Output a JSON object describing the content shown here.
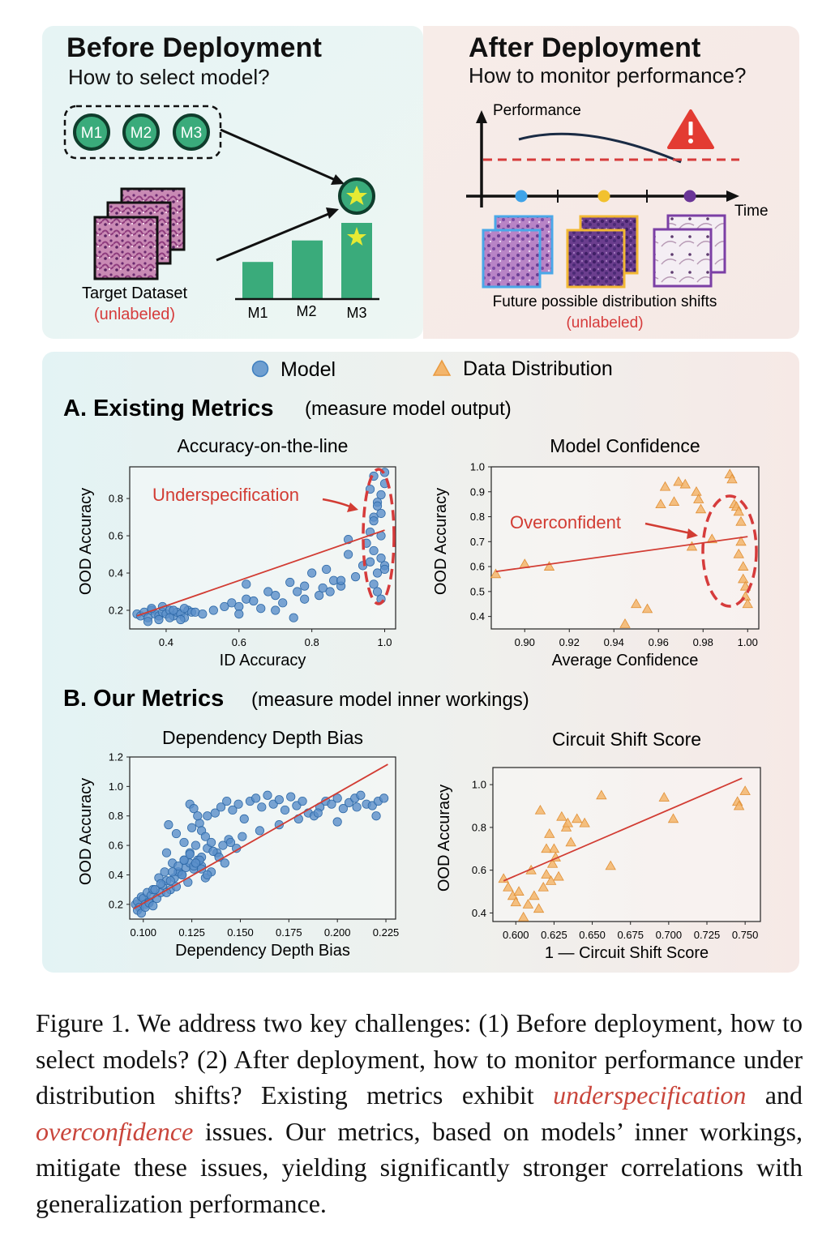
{
  "before": {
    "title": "Before Deployment",
    "subtitle": "How to select model?",
    "models": [
      "M1",
      "M2",
      "M3"
    ],
    "dataset_label": "Target Dataset",
    "unlabeled": "(unlabeled)",
    "bar_labels": [
      "M1",
      "M2",
      "M3"
    ],
    "bar_values": [
      0.38,
      0.6,
      0.78
    ]
  },
  "after": {
    "title": "After Deployment",
    "subtitle": "How to monitor performance?",
    "y_label": "Performance",
    "x_label": "Time",
    "alert_icon": "warning-icon",
    "shift_label": "Future possible distribution shifts",
    "unlabeled": "(unlabeled)"
  },
  "legend": {
    "model": "Model",
    "data": "Data Distribution"
  },
  "section_a": {
    "title": "A. Existing Metrics",
    "note": "(measure model output)"
  },
  "section_b": {
    "title": "B. Our Metrics",
    "note": "(measure model inner workings)"
  },
  "annotations": {
    "underspecification": "Underspecification",
    "overconfident": "Overconfident"
  },
  "caption": {
    "part1": "Figure 1. We address two key challenges: (1) Before deployment, how to select models? (2) After deployment, how to monitor performance under distribution shifts? Existing metrics exhibit ",
    "em1": "underspecification",
    "part2": " and ",
    "em2": "overconfidence",
    "part3": " issues. Our metrics, based on models’ inner workings, mitigate these issues, yielding significantly stronger correlations with generalization performance."
  },
  "colors": {
    "model": "#3f7fbf",
    "data": "#f0a24a",
    "fit": "#d23c33",
    "green": "#3aab7b"
  },
  "chart_data": [
    {
      "id": "acc-line",
      "type": "scatter",
      "title": "Accuracy-on-the-line",
      "xlabel": "ID Accuracy",
      "ylabel": "OOD Accuracy",
      "xlim": [
        0.3,
        1.03
      ],
      "ylim": [
        0.1,
        0.97
      ],
      "xticks": [
        0.4,
        0.6,
        0.8,
        1.0
      ],
      "yticks": [
        0.2,
        0.4,
        0.6,
        0.8
      ],
      "xtick_labels": [
        "0.4",
        "0.6",
        "0.8",
        "1.0"
      ],
      "ytick_labels": [
        "0.2",
        "0.4",
        "0.6",
        "0.8"
      ],
      "marker": "circle",
      "series": [
        {
          "name": "Model",
          "x": [
            0.32,
            0.33,
            0.34,
            0.35,
            0.36,
            0.37,
            0.38,
            0.39,
            0.4,
            0.41,
            0.42,
            0.43,
            0.44,
            0.45,
            0.46,
            0.47,
            0.35,
            0.38,
            0.41,
            0.44,
            0.36,
            0.39,
            0.42,
            0.45,
            0.48,
            0.5,
            0.53,
            0.56,
            0.58,
            0.6,
            0.62,
            0.64,
            0.66,
            0.68,
            0.7,
            0.72,
            0.74,
            0.76,
            0.78,
            0.8,
            0.82,
            0.84,
            0.86,
            0.88,
            0.9,
            0.92,
            0.94,
            0.62,
            0.7,
            0.78,
            0.85,
            0.6,
            0.75,
            0.9,
            0.83,
            0.88,
            0.95,
            0.96,
            0.97,
            0.98,
            0.99,
            1.0,
            0.96,
            0.97,
            0.98,
            0.99,
            1.0,
            0.96,
            0.97,
            0.98,
            0.99,
            1.0,
            0.97,
            0.98,
            0.99,
            1.0,
            0.97,
            0.99
          ],
          "y": [
            0.18,
            0.17,
            0.19,
            0.16,
            0.2,
            0.18,
            0.17,
            0.19,
            0.18,
            0.2,
            0.17,
            0.19,
            0.18,
            0.16,
            0.2,
            0.19,
            0.14,
            0.15,
            0.16,
            0.15,
            0.21,
            0.22,
            0.2,
            0.21,
            0.19,
            0.18,
            0.2,
            0.22,
            0.24,
            0.22,
            0.26,
            0.25,
            0.21,
            0.3,
            0.28,
            0.24,
            0.35,
            0.3,
            0.33,
            0.4,
            0.28,
            0.42,
            0.36,
            0.33,
            0.5,
            0.38,
            0.44,
            0.34,
            0.2,
            0.26,
            0.3,
            0.18,
            0.16,
            0.58,
            0.32,
            0.36,
            0.56,
            0.62,
            0.7,
            0.78,
            0.82,
            0.88,
            0.46,
            0.52,
            0.4,
            0.48,
            0.44,
            0.85,
            0.92,
            0.76,
            0.72,
            0.94,
            0.34,
            0.3,
            0.26,
            0.42,
            0.68,
            0.6
          ]
        }
      ],
      "fit": {
        "x": [
          0.32,
          1.0
        ],
        "y": [
          0.17,
          0.63
        ]
      }
    },
    {
      "id": "confidence",
      "type": "scatter",
      "title": "Model Confidence",
      "xlabel": "Average Confidence",
      "ylabel": "OOD Accuracy",
      "xlim": [
        0.885,
        1.005
      ],
      "ylim": [
        0.35,
        1.0
      ],
      "xticks": [
        0.9,
        0.92,
        0.94,
        0.96,
        0.98,
        1.0
      ],
      "yticks": [
        0.4,
        0.5,
        0.6,
        0.7,
        0.8,
        0.9,
        1.0
      ],
      "xtick_labels": [
        "0.90",
        "0.92",
        "0.94",
        "0.96",
        "0.98",
        "1.00"
      ],
      "ytick_labels": [
        "0.4",
        "0.5",
        "0.6",
        "0.7",
        "0.8",
        "0.9",
        "1.0"
      ],
      "marker": "triangle",
      "series": [
        {
          "name": "Data Distribution",
          "x": [
            0.887,
            0.9,
            0.911,
            0.945,
            0.95,
            0.955,
            0.961,
            0.963,
            0.967,
            0.969,
            0.972,
            0.975,
            0.977,
            0.978,
            0.979,
            0.984,
            0.992,
            0.993,
            0.994,
            0.995,
            0.996,
            0.997,
            0.998,
            0.998,
            0.999,
            0.999,
            1.0,
            0.996,
            0.997
          ],
          "y": [
            0.57,
            0.61,
            0.6,
            0.37,
            0.45,
            0.43,
            0.85,
            0.92,
            0.86,
            0.94,
            0.93,
            0.68,
            0.9,
            0.87,
            0.83,
            0.71,
            0.97,
            0.95,
            0.85,
            0.84,
            0.82,
            0.78,
            0.6,
            0.55,
            0.52,
            0.48,
            0.45,
            0.65,
            0.7
          ]
        }
      ],
      "fit": {
        "x": [
          0.887,
          1.0
        ],
        "y": [
          0.58,
          0.72
        ]
      }
    },
    {
      "id": "depth-bias",
      "type": "scatter",
      "title": "Dependency Depth Bias",
      "xlabel": "Dependency Depth Bias",
      "ylabel": "OOD Accuracy",
      "xlim": [
        0.093,
        0.23
      ],
      "ylim": [
        0.1,
        1.2
      ],
      "xticks": [
        0.1,
        0.125,
        0.15,
        0.175,
        0.2,
        0.225
      ],
      "yticks": [
        0.2,
        0.4,
        0.6,
        0.8,
        1.0,
        1.2
      ],
      "xtick_labels": [
        "0.100",
        "0.125",
        "0.150",
        "0.175",
        "0.200",
        "0.225"
      ],
      "ytick_labels": [
        "0.2",
        "0.4",
        "0.6",
        "0.8",
        "1.0",
        "1.2"
      ],
      "marker": "circle",
      "series": [
        {
          "name": "Model",
          "x": [
            0.096,
            0.097,
            0.098,
            0.099,
            0.1,
            0.101,
            0.102,
            0.103,
            0.104,
            0.105,
            0.097,
            0.099,
            0.101,
            0.103,
            0.105,
            0.107,
            0.109,
            0.11,
            0.112,
            0.114,
            0.116,
            0.118,
            0.12,
            0.122,
            0.124,
            0.126,
            0.128,
            0.13,
            0.112,
            0.115,
            0.118,
            0.121,
            0.124,
            0.127,
            0.13,
            0.133,
            0.113,
            0.117,
            0.121,
            0.125,
            0.129,
            0.133,
            0.137,
            0.14,
            0.143,
            0.146,
            0.149,
            0.152,
            0.155,
            0.158,
            0.161,
            0.164,
            0.167,
            0.17,
            0.173,
            0.176,
            0.179,
            0.182,
            0.185,
            0.188,
            0.191,
            0.194,
            0.197,
            0.2,
            0.203,
            0.206,
            0.209,
            0.212,
            0.215,
            0.218,
            0.221,
            0.224,
            0.124,
            0.126,
            0.128,
            0.13,
            0.132,
            0.135,
            0.108,
            0.111,
            0.114,
            0.117,
            0.12,
            0.123,
            0.126,
            0.129,
            0.132,
            0.135,
            0.138,
            0.141,
            0.144,
            0.106,
            0.109,
            0.112,
            0.115,
            0.118,
            0.121,
            0.124,
            0.127,
            0.13,
            0.133,
            0.136,
            0.139,
            0.142,
            0.145,
            0.148,
            0.151,
            0.16,
            0.17,
            0.18,
            0.19,
            0.2,
            0.21,
            0.22
          ],
          "y": [
            0.2,
            0.22,
            0.18,
            0.25,
            0.24,
            0.2,
            0.28,
            0.22,
            0.26,
            0.3,
            0.16,
            0.14,
            0.18,
            0.21,
            0.19,
            0.24,
            0.28,
            0.33,
            0.36,
            0.3,
            0.38,
            0.42,
            0.4,
            0.45,
            0.48,
            0.44,
            0.5,
            0.52,
            0.55,
            0.48,
            0.42,
            0.5,
            0.55,
            0.6,
            0.46,
            0.58,
            0.74,
            0.68,
            0.62,
            0.72,
            0.75,
            0.8,
            0.82,
            0.86,
            0.9,
            0.84,
            0.88,
            0.78,
            0.9,
            0.92,
            0.86,
            0.94,
            0.88,
            0.91,
            0.84,
            0.93,
            0.87,
            0.9,
            0.82,
            0.8,
            0.86,
            0.9,
            0.88,
            0.92,
            0.85,
            0.89,
            0.92,
            0.94,
            0.88,
            0.87,
            0.9,
            0.92,
            0.88,
            0.85,
            0.8,
            0.7,
            0.66,
            0.62,
            0.38,
            0.42,
            0.36,
            0.32,
            0.4,
            0.35,
            0.46,
            0.5,
            0.38,
            0.42,
            0.55,
            0.6,
            0.64,
            0.3,
            0.34,
            0.28,
            0.42,
            0.46,
            0.5,
            0.54,
            0.48,
            0.44,
            0.4,
            0.56,
            0.52,
            0.48,
            0.62,
            0.58,
            0.66,
            0.7,
            0.74,
            0.78,
            0.82,
            0.76,
            0.86,
            0.8
          ]
        }
      ],
      "fit": {
        "x": [
          0.095,
          0.226
        ],
        "y": [
          0.17,
          1.15
        ]
      }
    },
    {
      "id": "circuit-shift",
      "type": "scatter",
      "title": "Circuit Shift Score",
      "xlabel": "1 — Circuit Shift Score",
      "ylabel": "OOD Accuracy",
      "xlim": [
        0.585,
        0.76
      ],
      "ylim": [
        0.36,
        1.08
      ],
      "xticks": [
        0.6,
        0.625,
        0.65,
        0.675,
        0.7,
        0.725,
        0.75
      ],
      "yticks": [
        0.4,
        0.6,
        0.8,
        1.0
      ],
      "xtick_labels": [
        "0.600",
        "0.625",
        "0.650",
        "0.675",
        "0.700",
        "0.725",
        "0.750"
      ],
      "ytick_labels": [
        "0.4",
        "0.6",
        "0.8",
        "1.0"
      ],
      "marker": "triangle",
      "series": [
        {
          "name": "Data Distribution",
          "x": [
            0.592,
            0.595,
            0.598,
            0.6,
            0.602,
            0.605,
            0.608,
            0.61,
            0.612,
            0.615,
            0.618,
            0.62,
            0.622,
            0.624,
            0.625,
            0.626,
            0.628,
            0.63,
            0.633,
            0.634,
            0.636,
            0.64,
            0.645,
            0.656,
            0.662,
            0.697,
            0.703,
            0.745,
            0.746,
            0.75,
            0.616,
            0.62,
            0.623
          ],
          "y": [
            0.56,
            0.52,
            0.48,
            0.45,
            0.5,
            0.38,
            0.44,
            0.6,
            0.48,
            0.42,
            0.52,
            0.58,
            0.77,
            0.63,
            0.7,
            0.66,
            0.57,
            0.85,
            0.8,
            0.82,
            0.73,
            0.84,
            0.82,
            0.95,
            0.62,
            0.94,
            0.84,
            0.92,
            0.9,
            0.97,
            0.88,
            0.7,
            0.55
          ]
        }
      ],
      "fit": {
        "x": [
          0.592,
          0.748
        ],
        "y": [
          0.55,
          1.03
        ]
      }
    }
  ]
}
